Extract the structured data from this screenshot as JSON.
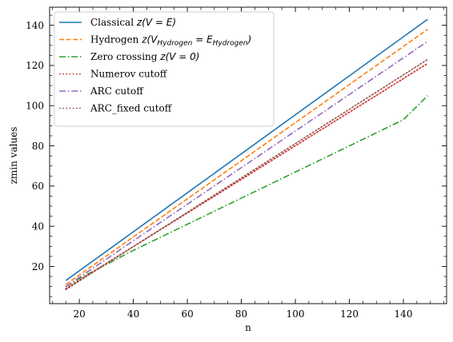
{
  "chart_data": {
    "type": "line",
    "xlabel": "n",
    "ylabel": "zmin values",
    "xlim": [
      9,
      156
    ],
    "ylim": [
      1.5,
      149
    ],
    "xticks": [
      20,
      40,
      60,
      80,
      100,
      120,
      140
    ],
    "yticks": [
      20,
      40,
      60,
      80,
      100,
      120,
      140
    ],
    "x_minor_step": 5,
    "y_minor_step": 5,
    "grid": false,
    "legend_position": "top-left",
    "series": [
      {
        "name": "Classical z(V = E)",
        "legend": {
          "text": "Classical ",
          "math": "z(V = E)"
        },
        "color": "#1f77b4",
        "dash": "solid",
        "x": [
          15,
          149
        ],
        "y": [
          13,
          143
        ]
      },
      {
        "name": "Hydrogen z(V_Hydrogen = E_Hydrogen)",
        "legend": {
          "text": "Hydrogen ",
          "math_a": "z(V",
          "sub_a": "Hydrogen",
          "math_b": " = E",
          "sub_b": "Hydrogen",
          "math_c": ")"
        },
        "color": "#ff7f0e",
        "dash": "dashed",
        "x": [
          15,
          149
        ],
        "y": [
          11,
          138
        ]
      },
      {
        "name": "Zero crossing z(V = 0)",
        "legend": {
          "text": "Zero crossing ",
          "math": "z(V = 0)"
        },
        "color": "#2ca02c",
        "dash": "dashdot",
        "x": [
          15,
          20,
          30,
          40,
          50,
          60,
          70,
          80,
          90,
          100,
          110,
          120,
          130,
          140,
          149
        ],
        "y": [
          10,
          14,
          21,
          28,
          34.5,
          41,
          47.5,
          54,
          60.5,
          67,
          73.5,
          80,
          86.5,
          93,
          105
        ]
      },
      {
        "name": "Numerov cutoff",
        "legend": {
          "text": "Numerov cutoff"
        },
        "color": "#d62728",
        "dash": "dotted",
        "x": [
          15,
          149
        ],
        "y": [
          9,
          121
        ]
      },
      {
        "name": "ARC cutoff",
        "legend": {
          "text": "ARC cutoff"
        },
        "color": "#9467bd",
        "dash": "dashdot",
        "x": [
          15,
          149
        ],
        "y": [
          10,
          132
        ]
      },
      {
        "name": "ARC_fixed cutoff",
        "legend": {
          "text": "ARC_fixed cutoff"
        },
        "color": "#8c564b",
        "dash": "dotted",
        "x": [
          15,
          149
        ],
        "y": [
          8.5,
          123
        ]
      }
    ]
  }
}
